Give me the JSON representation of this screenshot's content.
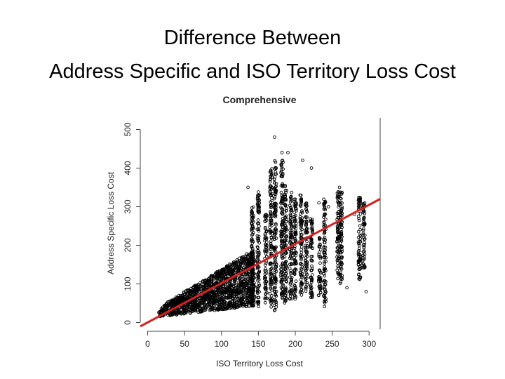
{
  "slide": {
    "title_line1": "Difference Between",
    "title_line2": "Address Specific and ISO Territory Loss Cost"
  },
  "colors": {
    "points": "#000000",
    "fit_line": "#d62020",
    "axis": "#444444"
  },
  "chart_data": {
    "type": "scatter",
    "title": "Comprehensive",
    "xlabel": "ISO Territory Loss Cost",
    "ylabel": "Address Specific Loss Cost",
    "xlim": [
      -10,
      315
    ],
    "ylim": [
      -10,
      530
    ],
    "xticks": [
      0,
      50,
      100,
      150,
      200,
      250,
      300
    ],
    "yticks": [
      0,
      100,
      200,
      300,
      400,
      500
    ],
    "grid": false,
    "fit_line": {
      "x": [
        -10,
        315
      ],
      "y": [
        -10,
        320
      ]
    },
    "columns": [
      {
        "x": 142,
        "ymin": 40,
        "ymax": 300
      },
      {
        "x": 150,
        "ymin": 40,
        "ymax": 340
      },
      {
        "x": 160,
        "ymin": 50,
        "ymax": 280
      },
      {
        "x": 167,
        "ymin": 40,
        "ymax": 400
      },
      {
        "x": 173,
        "ymin": 30,
        "ymax": 420
      },
      {
        "x": 182,
        "ymin": 60,
        "ymax": 420
      },
      {
        "x": 187,
        "ymin": 50,
        "ymax": 360
      },
      {
        "x": 194,
        "ymin": 60,
        "ymax": 340
      },
      {
        "x": 200,
        "ymin": 60,
        "ymax": 320
      },
      {
        "x": 208,
        "ymin": 70,
        "ymax": 330
      },
      {
        "x": 215,
        "ymin": 80,
        "ymax": 310
      },
      {
        "x": 222,
        "ymin": 60,
        "ymax": 280
      },
      {
        "x": 233,
        "ymin": 70,
        "ymax": 220
      },
      {
        "x": 240,
        "ymin": 40,
        "ymax": 320
      },
      {
        "x": 258,
        "ymin": 110,
        "ymax": 340
      },
      {
        "x": 262,
        "ymin": 100,
        "ymax": 340
      },
      {
        "x": 287,
        "ymin": 110,
        "ymax": 330
      },
      {
        "x": 293,
        "ymin": 140,
        "ymax": 310
      }
    ],
    "outliers": [
      {
        "x": 172,
        "y": 480
      },
      {
        "x": 190,
        "y": 440
      },
      {
        "x": 182,
        "y": 440
      },
      {
        "x": 210,
        "y": 420
      },
      {
        "x": 222,
        "y": 400
      },
      {
        "x": 232,
        "y": 310
      },
      {
        "x": 245,
        "y": 300
      },
      {
        "x": 260,
        "y": 350
      },
      {
        "x": 280,
        "y": 280
      },
      {
        "x": 296,
        "y": 80
      },
      {
        "x": 270,
        "y": 90
      },
      {
        "x": 136,
        "y": 350
      }
    ]
  }
}
